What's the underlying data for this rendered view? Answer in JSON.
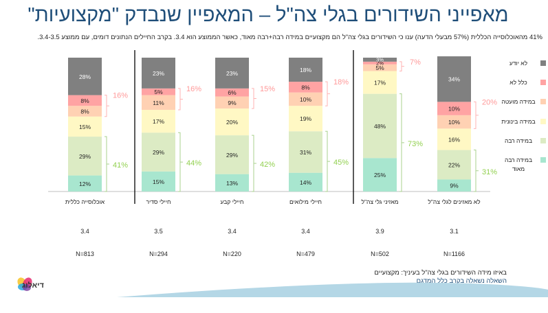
{
  "title": "מאפייני השידורים בגלי צה\"ל – המאפיין שנבדק \"מקצועיות\"",
  "subtitle": "41% מהאוכלוסייה הכללית (57% מבעלי הדעה) ענו כי השידורים בגלי צה\"ל הם מקצועיים במידה רבה+רבה מאוד, כאשר הממוצע הוא 3.4. בקרב החיילים הנתונים דומים, עם ממוצע 3.4-3.5.",
  "footnote": {
    "question": "באיזו מידה השידורים בגלי צה\"ל בעיניך: מקצועיים",
    "base": "השאלה נשאלה בקרב כלל המדגם"
  },
  "logo": {
    "text": "דיאלוג"
  },
  "chart_data": {
    "type": "bar",
    "stacked": true,
    "orientation": "vertical",
    "categories": [
      "אוכלוסייה כללית",
      "חיילי סדיר",
      "חיילי קבע",
      "חיילי מילואים",
      "מאזיני גלי צה\"ל",
      "לא מאזינים לגלי צה\"ל"
    ],
    "series": [
      {
        "name": "במידה רבה מאוד",
        "color": "#a8e6cf",
        "values": [
          12,
          15,
          13,
          14,
          25,
          9
        ]
      },
      {
        "name": "במידה רבה",
        "color": "#dcebc4",
        "values": [
          29,
          29,
          29,
          31,
          48,
          22
        ]
      },
      {
        "name": "במידה בינונית",
        "color": "#fff8c4",
        "values": [
          15,
          17,
          20,
          19,
          17,
          16
        ]
      },
      {
        "name": "במידה מועטה",
        "color": "#ffd1b3",
        "values": [
          8,
          11,
          9,
          10,
          5,
          10
        ]
      },
      {
        "name": "כלל לא",
        "color": "#ffa3a3",
        "values": [
          8,
          5,
          6,
          8,
          2,
          10
        ]
      },
      {
        "name": "לא יודע",
        "color": "#808080",
        "values": [
          28,
          23,
          23,
          18,
          3,
          34
        ]
      }
    ],
    "positive_totals": {
      "label_color": "#92d050",
      "values": [
        41,
        44,
        42,
        45,
        73,
        31
      ]
    },
    "negative_totals": {
      "label_color": "#ff9999",
      "values": [
        16,
        16,
        15,
        18,
        7,
        20
      ]
    },
    "means": [
      "3.4",
      "3.5",
      "3.4",
      "3.4",
      "3.9",
      "3.1"
    ],
    "sample_sizes": [
      "N=813",
      "N=294",
      "N=220",
      "N=479",
      "N=502",
      "N=1166"
    ],
    "ylim": [
      0,
      100
    ],
    "legend_position": "right",
    "legend_order": [
      "לא יודע",
      "כלל לא",
      "במידה מועטה",
      "במידה בינונית",
      "במידה רבה",
      "במידה רבה מאוד"
    ],
    "group_separators_after": [
      0,
      3
    ],
    "value_suffix": "%"
  }
}
